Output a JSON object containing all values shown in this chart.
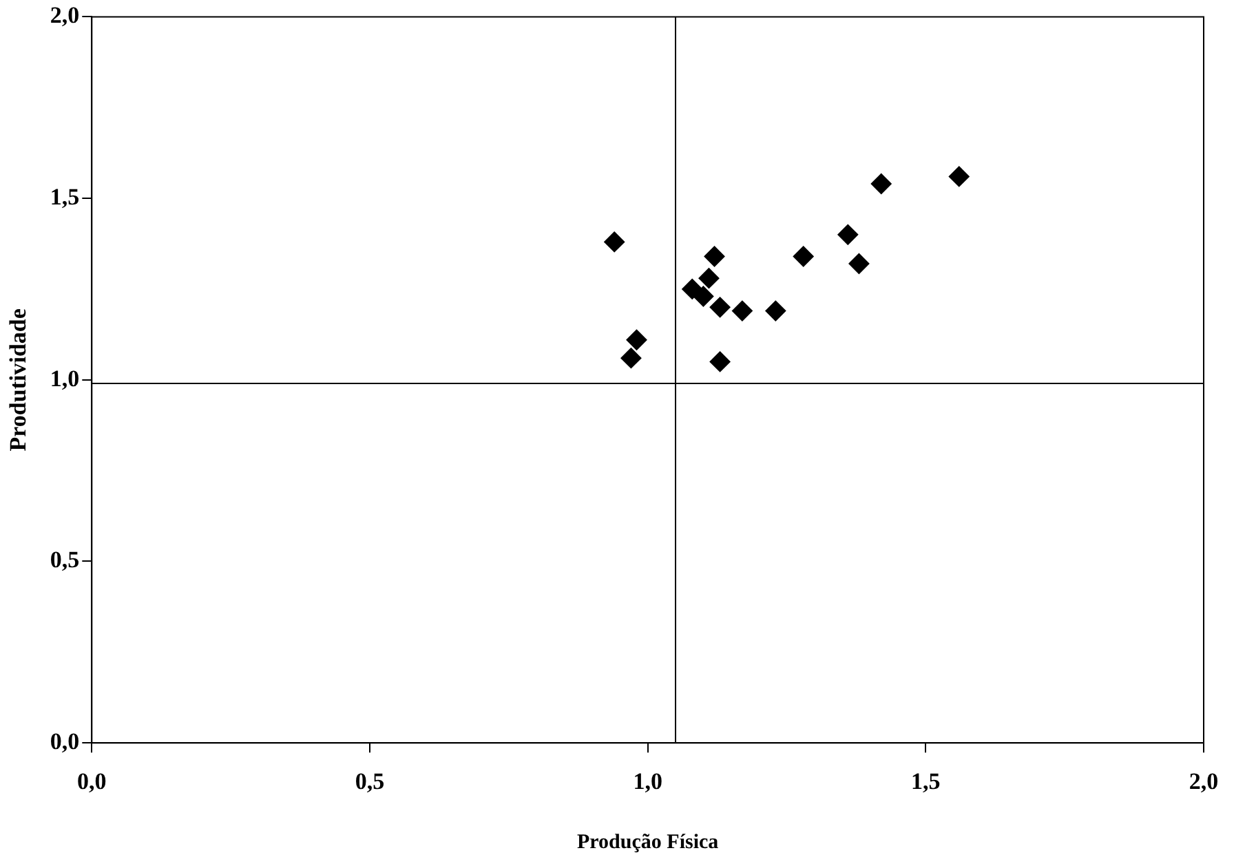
{
  "chart_data": {
    "type": "scatter",
    "xlabel": "Produção Física",
    "ylabel": "Produtividade",
    "x": [
      0.94,
      0.98,
      0.97,
      1.12,
      1.11,
      1.08,
      1.1,
      1.13,
      1.17,
      1.23,
      1.13,
      1.28,
      1.36,
      1.38,
      1.42,
      1.56
    ],
    "series": [
      {
        "color": "#000000",
        "values": [
          1.38,
          1.11,
          1.06,
          1.34,
          1.28,
          1.25,
          1.23,
          1.2,
          1.19,
          1.19,
          1.05,
          1.34,
          1.4,
          1.32,
          1.54,
          1.56
        ]
      }
    ],
    "xlim": [
      0,
      2
    ],
    "ylim": [
      0,
      2
    ],
    "xticks": [
      {
        "value": 0,
        "label": "0,0"
      },
      {
        "value": 0.5,
        "label": "0,5"
      },
      {
        "value": 1,
        "label": "1,0"
      },
      {
        "value": 1.5,
        "label": "1,5"
      },
      {
        "value": 2,
        "label": "2,0"
      }
    ],
    "yticks": [
      {
        "value": 0,
        "label": "0,0"
      },
      {
        "value": 0.5,
        "label": "0,5"
      },
      {
        "value": 1,
        "label": "1,0"
      },
      {
        "value": 1.5,
        "label": "1,5"
      },
      {
        "value": 2,
        "label": "2,0"
      }
    ],
    "ref_lines": [
      {
        "axis": "x",
        "value": 1.05
      },
      {
        "axis": "y",
        "value": 0.99
      }
    ],
    "grid": false,
    "legend": false,
    "marker": "diamond"
  }
}
